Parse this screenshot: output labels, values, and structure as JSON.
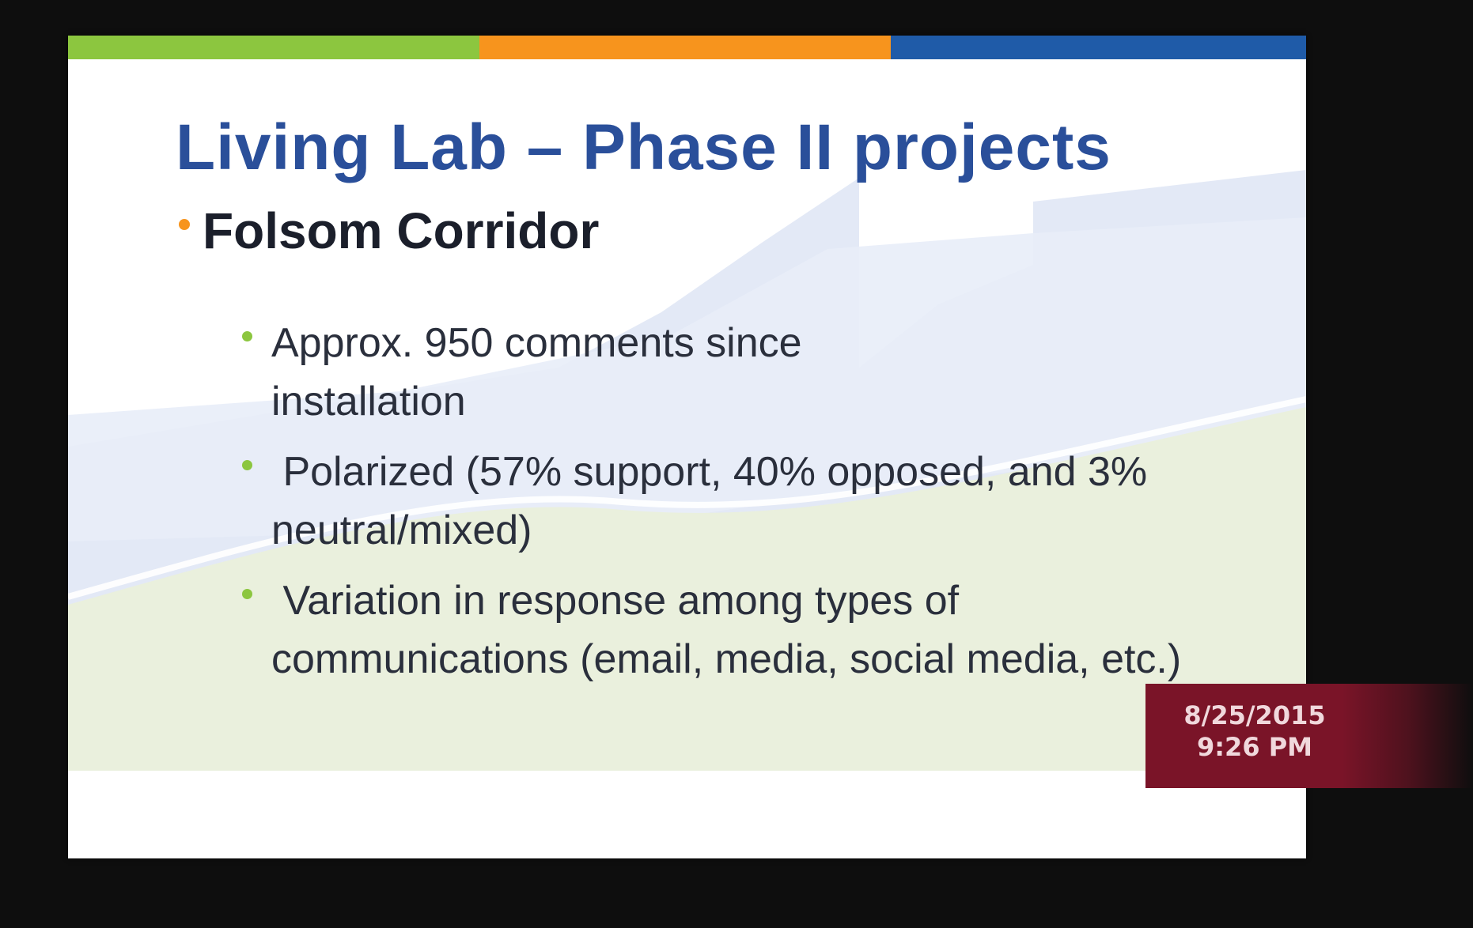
{
  "slide": {
    "title": "Living Lab – Phase II projects",
    "colors": {
      "bar_green": "#8cc63f",
      "bar_orange": "#f7941d",
      "bar_blue": "#1f5ba8",
      "title": "#2a4f9a",
      "bullet_level1": "#f7941d",
      "bullet_level2": "#8cc63f",
      "bg_blue": "#dfe6f5",
      "bg_green": "#e9efdc"
    },
    "bullets": [
      {
        "text": "Folsom Corridor",
        "sub": [
          "Approx. 950 comments since installation",
          " Polarized (57% support, 40% opposed, and 3% neutral/mixed)",
          " Variation in response among types of communications (email, media, social media, etc.)"
        ]
      }
    ]
  },
  "overlay": {
    "date": "8/25/2015",
    "time": "9:26 PM",
    "color": "#7a1428"
  }
}
